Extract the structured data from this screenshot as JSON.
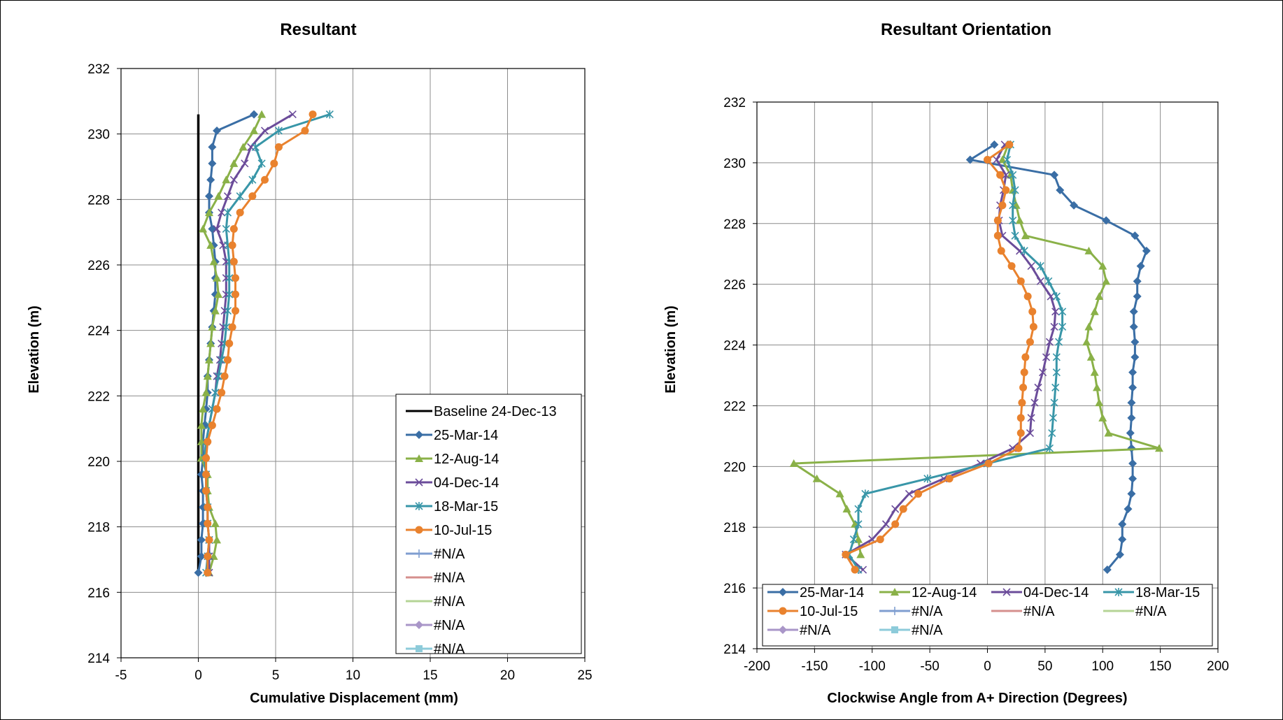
{
  "chart_data": [
    {
      "type": "line",
      "title": "Resultant",
      "xlabel": "Cumulative Displacement (mm)",
      "ylabel": "Elevation (m)",
      "xlim": [
        -5,
        25
      ],
      "ylim": [
        214,
        232
      ],
      "xticks": [
        "-5",
        "0",
        "5",
        "10",
        "15",
        "20",
        "25"
      ],
      "yticks": [
        "214",
        "216",
        "218",
        "220",
        "222",
        "224",
        "226",
        "228",
        "230",
        "232"
      ],
      "grid": true,
      "legend_position": "bottom-right",
      "elevations": [
        230.6,
        230.1,
        229.6,
        229.1,
        228.6,
        228.1,
        227.6,
        227.1,
        226.6,
        226.1,
        225.6,
        225.1,
        224.6,
        224.1,
        223.6,
        223.1,
        222.6,
        222.1,
        221.6,
        221.1,
        220.6,
        220.1,
        219.6,
        219.1,
        218.6,
        218.1,
        217.6,
        217.1,
        216.6
      ],
      "series": [
        {
          "name": "Baseline 24-Dec-13",
          "color": "#000000",
          "marker": "none",
          "values": [
            0,
            0,
            0,
            0,
            0,
            0,
            0,
            0,
            0,
            0,
            0,
            0,
            0,
            0,
            0,
            0,
            0,
            0,
            0,
            0,
            0,
            0,
            0,
            0,
            0,
            0,
            0,
            0,
            0
          ]
        },
        {
          "name": "25-Mar-14",
          "color": "#3A6EA5",
          "marker": "diamond",
          "values": [
            3.6,
            1.2,
            0.9,
            0.9,
            0.8,
            0.7,
            0.7,
            0.9,
            1,
            1.1,
            1.1,
            1.1,
            1,
            0.9,
            0.8,
            0.7,
            0.6,
            0.6,
            0.5,
            0.4,
            0.3,
            0.3,
            0.2,
            0.3,
            0.3,
            0.3,
            0.2,
            0.2,
            0
          ]
        },
        {
          "name": "12-Aug-14",
          "color": "#8AB148",
          "marker": "triangle",
          "values": [
            4.1,
            3.6,
            2.9,
            2.3,
            1.8,
            1.3,
            0.7,
            0.3,
            0.8,
            1,
            1.2,
            1.3,
            1.1,
            0.9,
            0.8,
            0.7,
            0.6,
            0.5,
            0.3,
            0.2,
            0.2,
            0.2,
            0.6,
            0.6,
            0.7,
            1.1,
            1.2,
            1,
            0.7
          ]
        },
        {
          "name": "04-Dec-14",
          "color": "#6B4C9A",
          "marker": "x",
          "values": [
            6.1,
            4.3,
            3.4,
            3,
            2.3,
            1.9,
            1.5,
            1.2,
            1.6,
            1.8,
            1.8,
            1.8,
            1.7,
            1.6,
            1.5,
            1.4,
            1.2,
            1.1,
            0.9,
            0.7,
            0.5,
            0.4,
            0.5,
            0.5,
            0.6,
            0.6,
            0.7,
            0.7,
            0.7
          ]
        },
        {
          "name": "18-Mar-15",
          "color": "#3896A8",
          "marker": "star",
          "values": [
            8.5,
            5.2,
            3.7,
            4.1,
            3.5,
            2.7,
            1.9,
            1.8,
            1.9,
            2,
            2,
            2,
            1.9,
            1.8,
            1.7,
            1.5,
            1.3,
            1.1,
            0.9,
            0.7,
            0.5,
            0.4,
            0.5,
            0.5,
            0.6,
            0.6,
            0.7,
            0.6,
            0.5
          ]
        },
        {
          "name": "10-Jul-15",
          "color": "#E9822E",
          "marker": "circle",
          "values": [
            7.4,
            6.9,
            5.2,
            4.9,
            4.3,
            3.5,
            2.7,
            2.3,
            2.2,
            2.3,
            2.4,
            2.4,
            2.4,
            2.2,
            2,
            1.9,
            1.7,
            1.5,
            1.2,
            0.9,
            0.6,
            0.5,
            0.5,
            0.5,
            0.6,
            0.6,
            0.7,
            0.6,
            0.6
          ]
        },
        {
          "name": "#N/A",
          "color": "#7F9ED0",
          "marker": "plus",
          "values": []
        },
        {
          "name": "#N/A",
          "color": "#D58F8D",
          "marker": "none",
          "values": []
        },
        {
          "name": "#N/A",
          "color": "#B5D496",
          "marker": "none",
          "values": []
        },
        {
          "name": "#N/A",
          "color": "#A996C8",
          "marker": "diamond",
          "values": []
        },
        {
          "name": "#N/A",
          "color": "#8DCBDA",
          "marker": "square",
          "values": []
        }
      ]
    },
    {
      "type": "line",
      "title": "Resultant  Orientation",
      "xlabel": "Clockwise Angle from A+ Direction (Degrees)",
      "ylabel": "Elevation (m)",
      "xlim": [
        -200,
        200
      ],
      "ylim": [
        214,
        232
      ],
      "xticks": [
        "-200",
        "-150",
        "-100",
        "-50",
        "0",
        "50",
        "100",
        "150",
        "200"
      ],
      "yticks": [
        "214",
        "216",
        "218",
        "220",
        "222",
        "224",
        "226",
        "228",
        "230",
        "232"
      ],
      "grid": true,
      "legend_position": "bottom",
      "elevations": [
        230.6,
        230.1,
        229.6,
        229.1,
        228.6,
        228.1,
        227.6,
        227.1,
        226.6,
        226.1,
        225.6,
        225.1,
        224.6,
        224.1,
        223.6,
        223.1,
        222.6,
        222.1,
        221.6,
        221.1,
        220.6,
        220.1,
        219.6,
        219.1,
        218.6,
        218.1,
        217.6,
        217.1,
        216.6
      ],
      "series": [
        {
          "name": "25-Mar-14",
          "color": "#3A6EA5",
          "marker": "diamond",
          "values": [
            6,
            -15,
            58,
            63,
            75,
            103,
            128,
            138,
            133,
            130,
            130,
            127,
            127,
            128,
            128,
            126,
            126,
            125,
            125,
            124,
            125,
            126,
            126,
            125,
            122,
            117,
            117,
            115,
            104
          ]
        },
        {
          "name": "12-Aug-14",
          "color": "#8AB148",
          "marker": "triangle",
          "values": [
            18,
            13,
            20,
            22,
            25,
            28,
            33,
            88,
            100,
            103,
            97,
            93,
            88,
            86,
            90,
            93,
            95,
            97,
            100,
            105,
            149,
            -168,
            -148,
            -128,
            -122,
            -115,
            -112,
            -110,
            null
          ]
        },
        {
          "name": "04-Dec-14",
          "color": "#6B4C9A",
          "marker": "x",
          "values": [
            15,
            8,
            16,
            14,
            11,
            10,
            13,
            28,
            38,
            46,
            55,
            59,
            58,
            54,
            51,
            48,
            44,
            41,
            38,
            37,
            22,
            -6,
            -38,
            -68,
            -80,
            -88,
            -100,
            -123,
            -108
          ]
        },
        {
          "name": "18-Mar-15",
          "color": "#3896A8",
          "marker": "star",
          "values": [
            20,
            17,
            22,
            24,
            22,
            22,
            24,
            32,
            46,
            53,
            60,
            65,
            65,
            62,
            60,
            60,
            59,
            58,
            57,
            56,
            54,
            0,
            -52,
            -106,
            -112,
            -112,
            -116,
            -120,
            -112
          ]
        },
        {
          "name": "10-Jul-15",
          "color": "#E9822E",
          "marker": "circle",
          "values": [
            19,
            0,
            11,
            16,
            13,
            9,
            9,
            12,
            21,
            29,
            35,
            39,
            40,
            37,
            33,
            32,
            31,
            30,
            29,
            29,
            27,
            1,
            -33,
            -60,
            -73,
            -80,
            -93,
            -123,
            -115
          ]
        },
        {
          "name": "#N/A",
          "color": "#7F9ED0",
          "marker": "plus",
          "values": []
        },
        {
          "name": "#N/A",
          "color": "#D58F8D",
          "marker": "none",
          "values": []
        },
        {
          "name": "#N/A",
          "color": "#B5D496",
          "marker": "none",
          "values": []
        },
        {
          "name": "#N/A",
          "color": "#A996C8",
          "marker": "diamond",
          "values": []
        },
        {
          "name": "#N/A",
          "color": "#8DCBDA",
          "marker": "square",
          "values": []
        }
      ]
    }
  ]
}
